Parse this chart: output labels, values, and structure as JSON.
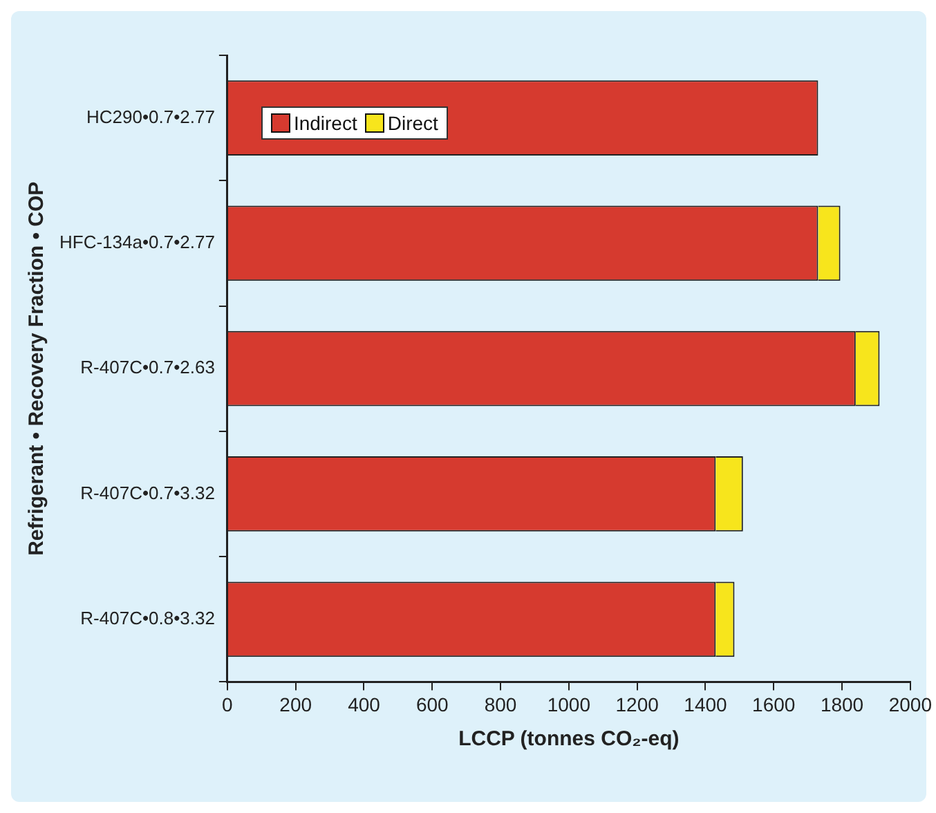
{
  "chart_data": {
    "type": "bar",
    "orientation": "horizontal",
    "stacked": true,
    "xlabel": "LCCP (tonnes CO₂-eq)",
    "ylabel": "Refrigerant • Recovery Fraction • COP",
    "categories": [
      "HC290•0.7•2.77",
      "HFC-134a•0.7•2.77",
      "R-407C•0.7•2.63",
      "R-407C•0.7•3.32",
      "R-407C•0.8•3.32"
    ],
    "series": [
      {
        "name": "Indirect",
        "color": "#d63a2f",
        "values": [
          1730,
          1730,
          1840,
          1430,
          1430
        ]
      },
      {
        "name": "Direct",
        "color": "#f7e51c",
        "values": [
          0,
          65,
          70,
          80,
          55
        ]
      }
    ],
    "xlim": [
      0,
      2000
    ],
    "xticks": [
      0,
      200,
      400,
      600,
      800,
      1000,
      1200,
      1400,
      1600,
      1800,
      2000
    ],
    "grid": false,
    "legend": "top left"
  }
}
